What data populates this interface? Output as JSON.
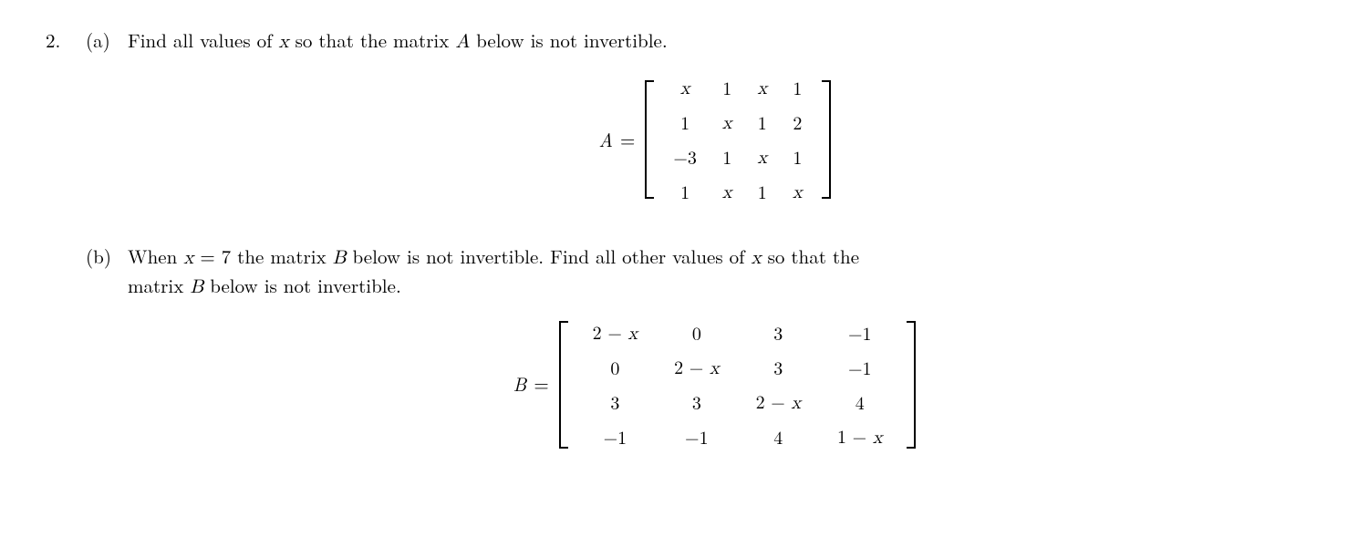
{
  "problem_number": "2.",
  "parts": {
    "a": {
      "label": "(a)",
      "text_before_var1": "Find all values of ",
      "var1": "x",
      "text_mid1": " so that the matrix ",
      "var2": "A",
      "text_after": " below is not invertible.",
      "matrix": {
        "name": "A",
        "eq": "=",
        "rows": [
          [
            "x",
            "1",
            "x",
            "1"
          ],
          [
            "1",
            "x",
            "1",
            "2"
          ],
          [
            "−3",
            "1",
            "x",
            "1"
          ],
          [
            "1",
            "x",
            "1",
            "x"
          ]
        ],
        "italic_flags": [
          [
            true,
            false,
            true,
            false
          ],
          [
            false,
            true,
            false,
            false
          ],
          [
            false,
            false,
            true,
            false
          ],
          [
            false,
            true,
            false,
            true
          ]
        ],
        "bracket_height": 130,
        "bracket_width": 12,
        "bracket_stroke": 2
      }
    },
    "b": {
      "label": "(b)",
      "t1": "When ",
      "v1": "x",
      "t2": " = 7 the matrix ",
      "v2": "B",
      "t3": " below is not invertible.  Find all other values of ",
      "v3": "x",
      "t4": " so that the",
      "t5": "matrix ",
      "v4": "B",
      "t6": " below is not invertible.",
      "matrix": {
        "name": "B",
        "eq": "=",
        "rows": [
          [
            "2 − x",
            "0",
            "3",
            "−1"
          ],
          [
            "0",
            "2 − x",
            "3",
            "−1"
          ],
          [
            "3",
            "3",
            "2 − x",
            "4"
          ],
          [
            "−1",
            "−1",
            "4",
            "1 − x"
          ]
        ],
        "italic_flags": [
          [
            true,
            false,
            false,
            false
          ],
          [
            false,
            true,
            false,
            false
          ],
          [
            false,
            false,
            true,
            false
          ],
          [
            false,
            false,
            false,
            true
          ]
        ],
        "bracket_height": 140,
        "bracket_width": 12,
        "bracket_stroke": 2
      }
    }
  },
  "colors": {
    "text": "#000000",
    "background": "#ffffff"
  },
  "font_sizes": {
    "body": 21,
    "matrix_cell": 20
  }
}
